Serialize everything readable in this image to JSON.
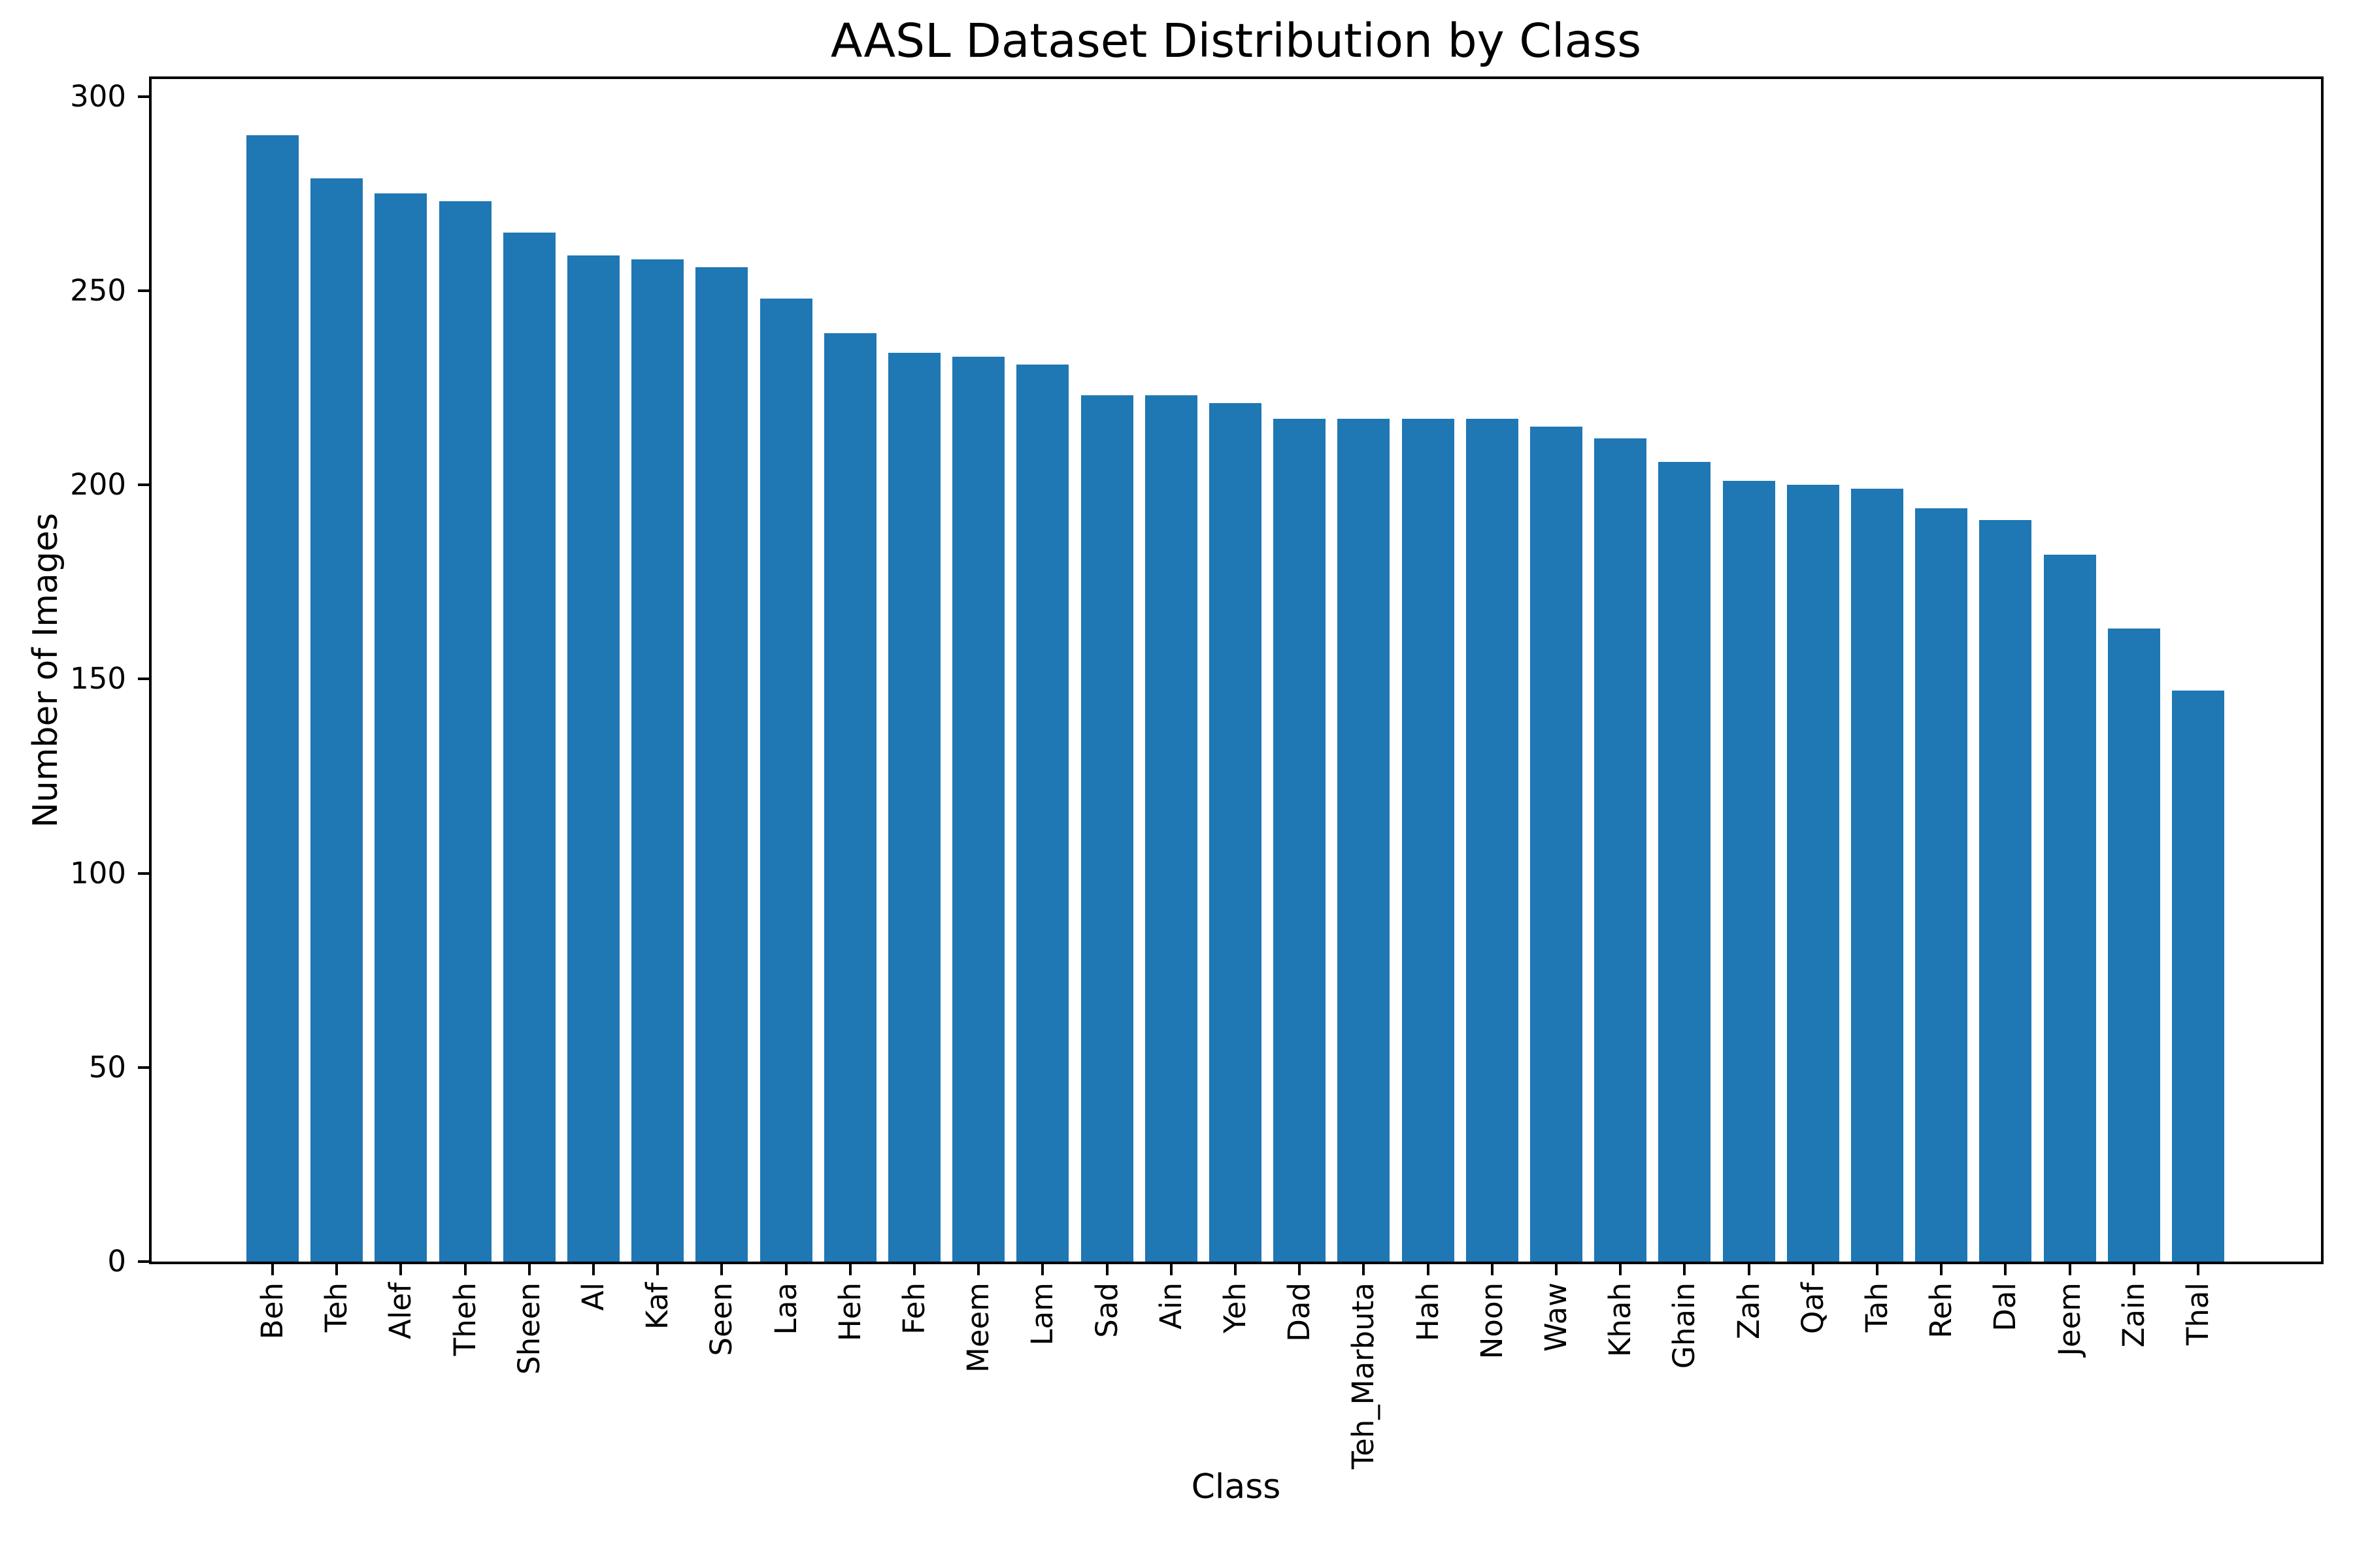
{
  "chart_data": {
    "type": "bar",
    "title": "AASL Dataset Distribution by Class",
    "xlabel": "Class",
    "ylabel": "Number of Images",
    "categories": [
      "Beh",
      "Teh",
      "Alef",
      "Theh",
      "Sheen",
      "Al",
      "Kaf",
      "Seen",
      "Laa",
      "Heh",
      "Feh",
      "Meem",
      "Lam",
      "Sad",
      "Ain",
      "Yeh",
      "Dad",
      "Teh_Marbuta",
      "Hah",
      "Noon",
      "Waw",
      "Khah",
      "Ghain",
      "Zah",
      "Qaf",
      "Tah",
      "Reh",
      "Dal",
      "Jeem",
      "Zain",
      "Thal"
    ],
    "values": [
      290,
      279,
      275,
      273,
      265,
      259,
      258,
      256,
      248,
      239,
      234,
      233,
      231,
      223,
      223,
      221,
      217,
      217,
      217,
      217,
      215,
      212,
      206,
      201,
      200,
      199,
      194,
      191,
      182,
      163,
      147
    ],
    "yticks": [
      0,
      50,
      100,
      150,
      200,
      250,
      300
    ],
    "ylim": [
      0,
      304.5
    ],
    "bar_color": "#1f77b4",
    "axis_color": "#000000",
    "background_color": "#ffffff",
    "grid": false,
    "legend": null
  }
}
